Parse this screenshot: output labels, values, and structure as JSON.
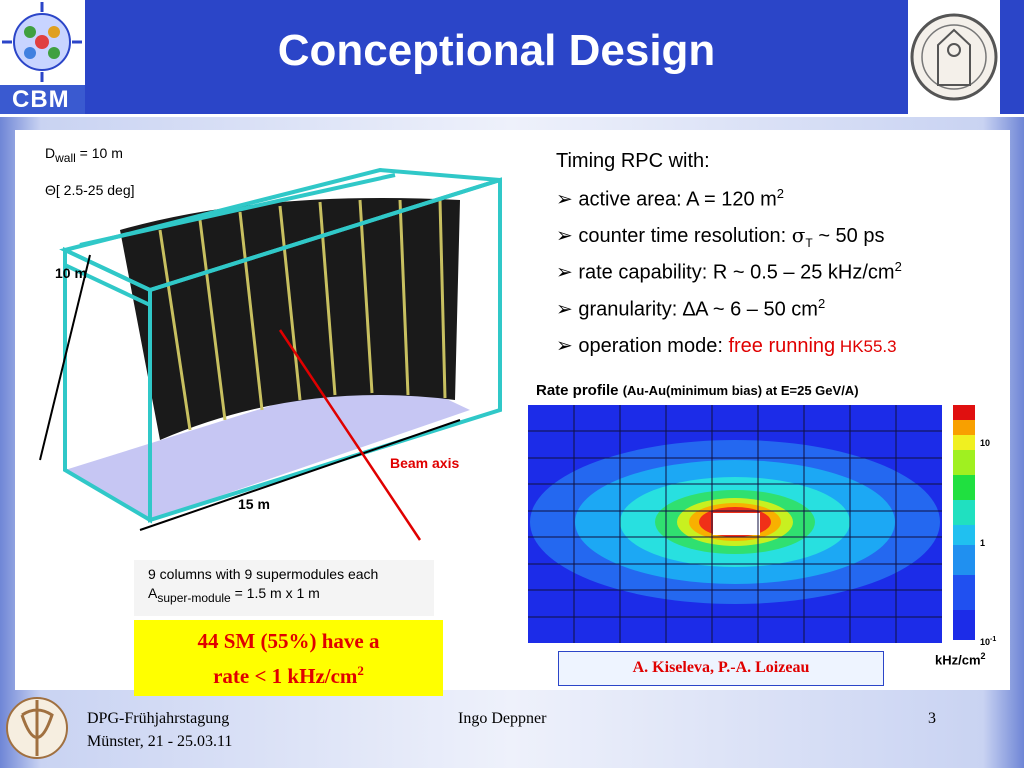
{
  "header": {
    "title": "Conceptional Design",
    "logo": "CBM"
  },
  "figure": {
    "d_wall": {
      "main": "D",
      "sub": "wall",
      "rest": " = 10 m"
    },
    "theta": "Θ[ 2.5-25 deg]",
    "height": "10 m",
    "width": "15 m",
    "beam_axis": "Beam axis",
    "columns": "9 columns with 9 supermodules each",
    "area": {
      "main": "A",
      "sub": "super-module",
      "rest": " = 1.5 m x 1 m"
    }
  },
  "highlight": {
    "line1": "44 SM (55%) have a",
    "line2": "rate < 1 kHz/cm",
    "sup": "2"
  },
  "bullets": {
    "intro": "Timing RPC with:",
    "items": [
      {
        "text": "active area: A = 120 m",
        "sup": "2"
      },
      {
        "text": "counter time resolution: ",
        "symbol": "σ",
        "sub": "T",
        "rest": " ~ 50 ps"
      },
      {
        "text": "rate capability: R ~ 0.5 – 25 kHz/cm",
        "sup": "2"
      },
      {
        "text": "granularity: ",
        "symbol": "∆",
        "rest": "A ~ 6 – 50 cm",
        "sup": "2"
      },
      {
        "text": "operation mode: ",
        "red": "free running",
        "tag": " HK55.3"
      }
    ]
  },
  "rate_profile": {
    "title": "Rate profile",
    "subtitle": "(Au-Au(minimum bias) at E=25 GeV/A)",
    "colorbar": [
      {
        "base": "10"
      },
      {
        "base": "1"
      },
      {
        "base": "10",
        "exp": "-1"
      }
    ],
    "unit": "kHz/cm",
    "unit_sup": "2"
  },
  "credit": "A. Kiseleva, P.-A. Loizeau",
  "footer": {
    "conference": "DPG-Frühjahrstagung",
    "place": "Münster, 21 - 25.03.11",
    "author": "Ingo Deppner",
    "page": "3"
  }
}
